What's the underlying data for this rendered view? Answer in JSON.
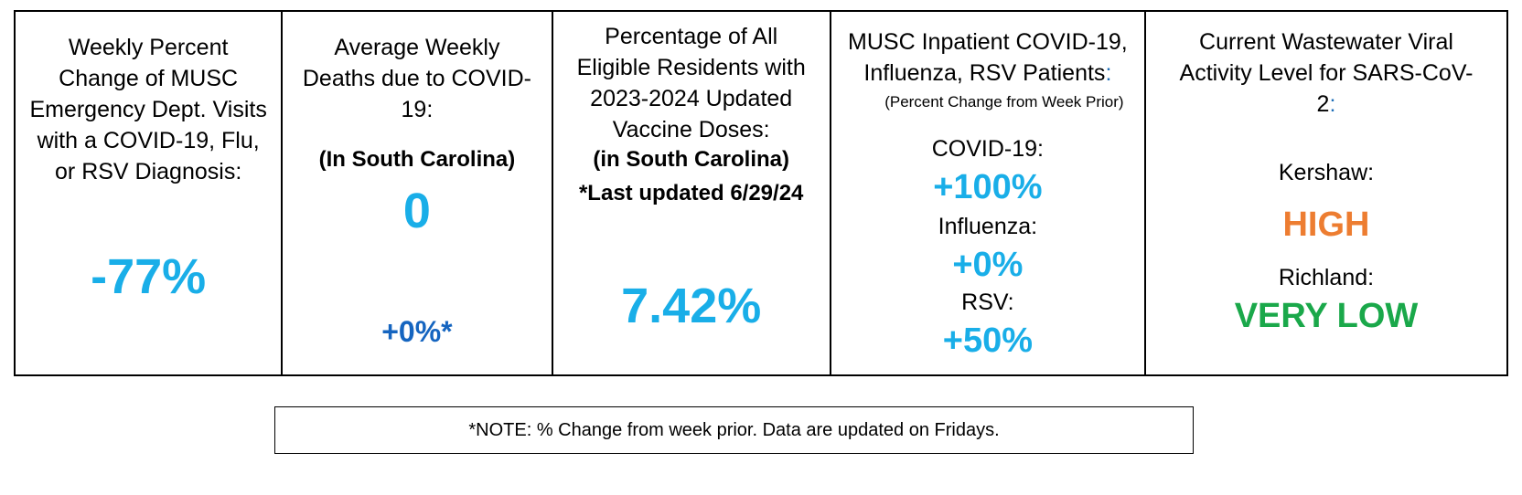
{
  "colors": {
    "primary_value": "#19aee8",
    "secondary_value": "#1565c0",
    "high_level": "#ed7d31",
    "very_low_level": "#1aa84a"
  },
  "panels": {
    "ed_visits": {
      "title": "Weekly Percent Change of MUSC Emergency Dept. Visits with a COVID-19, Flu, or RSV Diagnosis:",
      "value": "-77%"
    },
    "deaths": {
      "title": "Average Weekly Deaths due to COVID-19:",
      "region": "(In South Carolina)",
      "value": "0",
      "change": "+0%*"
    },
    "vaccine": {
      "title": "Percentage of All Eligible Residents with 2023-2024 Updated Vaccine Doses:",
      "region": "(in South Carolina)",
      "updated": "*Last updated 6/29/24",
      "value": "7.42%"
    },
    "inpatient": {
      "title": "MUSC Inpatient COVID-19, Influenza, RSV Patients",
      "colon": ":",
      "note": "(Percent Change from Week Prior)",
      "covid_label": "COVID-19:",
      "covid_value": "+100%",
      "flu_label": "Influenza:",
      "flu_value": "+0%",
      "rsv_label": "RSV:",
      "rsv_value": "+50%"
    },
    "wastewater": {
      "title": "Current Wastewater Viral Activity Level for SARS-CoV-2",
      "colon": ":",
      "county1_label": "Kershaw:",
      "county1_level": "HIGH",
      "county2_label": "Richland:",
      "county2_level": "VERY LOW"
    }
  },
  "footnote": "*NOTE: % Change from week prior. Data are updated on Fridays."
}
